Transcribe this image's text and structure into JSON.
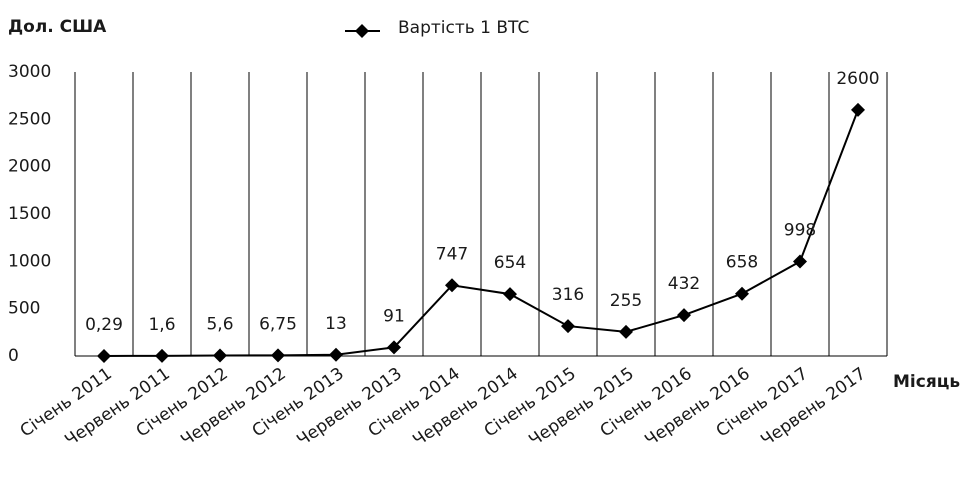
{
  "chart_data": {
    "type": "line",
    "y_axis_title": "Дол. США",
    "x_axis_title": "Місяць",
    "categories": [
      "Січень 2011",
      "Червень 2011",
      "Січень 2012",
      "Червень 2012",
      "Січень 2013",
      "Червень 2013",
      "Січень 2014",
      "Червень 2014",
      "Січень 2015",
      "Червень 2015",
      "Січень 2016",
      "Червень 2016",
      "Січень 2017",
      "Червень 2017"
    ],
    "series": [
      {
        "name": "Вартість 1 BTC",
        "color": "#000000",
        "values": [
          0.29,
          1.6,
          5.6,
          6.75,
          13,
          91,
          747,
          654,
          316,
          255,
          432,
          658,
          998,
          2600
        ],
        "value_labels": [
          "0,29",
          "1,6",
          "5,6",
          "6,75",
          "13",
          "91",
          "747",
          "654",
          "316",
          "255",
          "432",
          "658",
          "998",
          "2600"
        ]
      }
    ],
    "ylim": [
      0,
      3000
    ],
    "yticks": [
      0,
      500,
      1000,
      1500,
      2000,
      2500,
      3000
    ],
    "grid": "x",
    "legend": "top"
  }
}
